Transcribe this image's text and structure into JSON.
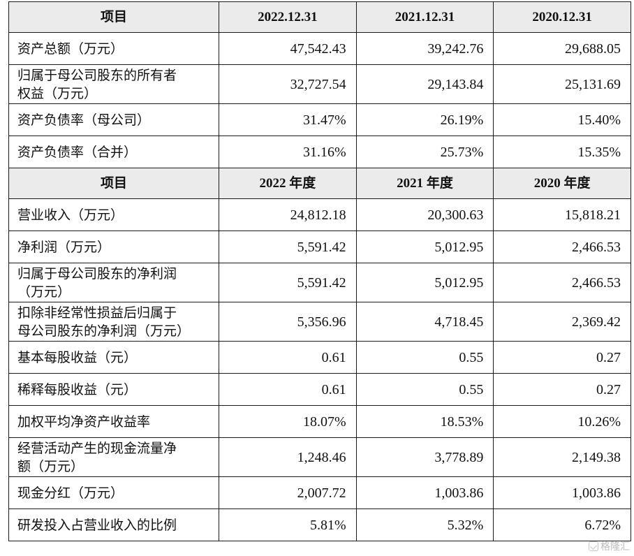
{
  "balance_header": [
    "项目",
    "2022.12.31",
    "2021.12.31",
    "2020.12.31"
  ],
  "balance_rows": [
    {
      "label": "资产总额（万元）",
      "values": [
        "47,542.43",
        "39,242.76",
        "29,688.05"
      ]
    },
    {
      "label": "归属于母公司股东的所有者\n权益（万元）",
      "values": [
        "32,727.54",
        "29,143.84",
        "25,131.69"
      ]
    },
    {
      "label": "资产负债率（母公司）",
      "values": [
        "31.47%",
        "26.19%",
        "15.40%"
      ]
    },
    {
      "label": "资产负债率（合并）",
      "values": [
        "31.16%",
        "25.73%",
        "15.35%"
      ]
    }
  ],
  "income_header": [
    "项目",
    "2022 年度",
    "2021 年度",
    "2020 年度"
  ],
  "income_rows": [
    {
      "label": "营业收入（万元）",
      "values": [
        "24,812.18",
        "20,300.63",
        "15,818.21"
      ]
    },
    {
      "label": "净利润（万元）",
      "values": [
        "5,591.42",
        "5,012.95",
        "2,466.53"
      ]
    },
    {
      "label": "归属于母公司股东的净利润\n（万元）",
      "values": [
        "5,591.42",
        "5,012.95",
        "2,466.53"
      ]
    },
    {
      "label": "扣除非经常性损益后归属于\n母公司股东的净利润（万元）",
      "values": [
        "5,356.96",
        "4,718.45",
        "2,369.42"
      ]
    },
    {
      "label": "基本每股收益（元）",
      "values": [
        "0.61",
        "0.55",
        "0.27"
      ]
    },
    {
      "label": "稀释每股收益（元）",
      "values": [
        "0.61",
        "0.55",
        "0.27"
      ]
    },
    {
      "label": "加权平均净资产收益率",
      "values": [
        "18.07%",
        "18.53%",
        "10.26%"
      ]
    },
    {
      "label": "经营活动产生的现金流量净\n额（万元）",
      "values": [
        "1,248.46",
        "3,778.89",
        "2,149.38"
      ]
    },
    {
      "label": "现金分红（万元）",
      "values": [
        "2,007.72",
        "1,003.86",
        "1,003.86"
      ]
    },
    {
      "label": "研发投入占营业收入的比例",
      "values": [
        "5.81%",
        "5.32%",
        "6.72%"
      ]
    }
  ],
  "watermark": {
    "text": "格隆汇",
    "icon": "logo-mark-icon"
  }
}
